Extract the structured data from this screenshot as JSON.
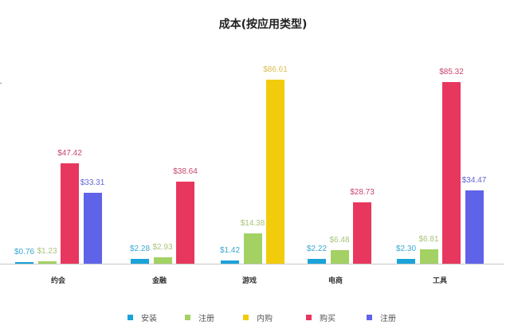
{
  "chart_data": {
    "type": "bar",
    "title": "成本(按应用类型)",
    "xlabel": "",
    "ylabel": "",
    "categories": [
      "约会",
      "金融",
      "游戏",
      "电商",
      "工具"
    ],
    "series": [
      {
        "name": "安装",
        "color": "#1AA3D9",
        "values": [
          0.76,
          2.28,
          1.42,
          2.22,
          2.3
        ],
        "labels": [
          "$0.76",
          "$2.28",
          "$1.42",
          "$2.22",
          "$2.30"
        ]
      },
      {
        "name": "注册",
        "color": "#A3D164",
        "values": [
          1.23,
          2.93,
          14.38,
          6.48,
          6.81
        ],
        "labels": [
          "$1.23",
          "$2.93",
          "$14.38",
          "$6.48",
          "$6.81"
        ]
      },
      {
        "name": "内购",
        "color": "#F2CC0C",
        "values": [
          null,
          null,
          86.61,
          null,
          null
        ],
        "labels": [
          "",
          "",
          "$86.61",
          "",
          ""
        ]
      },
      {
        "name": "购买",
        "color": "#E8375E",
        "values": [
          47.42,
          38.64,
          null,
          28.73,
          85.32
        ],
        "labels": [
          "$47.42",
          "$38.64",
          "",
          "$28.73",
          "$85.32"
        ]
      },
      {
        "name": "注册",
        "color": "#5F63E8",
        "values": [
          33.31,
          null,
          null,
          null,
          34.47
        ],
        "labels": [
          "$33.31",
          "",
          "",
          "",
          "$34.47"
        ]
      }
    ],
    "ylim": [
      0,
      90
    ],
    "grid": false,
    "legend_position": "bottom",
    "value_label_color": {
      "安装": "#3AA6D0",
      "注册": "#A8C47A",
      "内购": "#D9BF4F",
      "购买": "#C9456A",
      "注册2": "#6266D6"
    }
  },
  "title": "成本(按应用类型)",
  "categories": [
    "约会",
    "金融",
    "游戏",
    "电商",
    "工具"
  ],
  "legend": [
    "安装",
    "注册",
    "内购",
    "购买",
    "注册"
  ]
}
